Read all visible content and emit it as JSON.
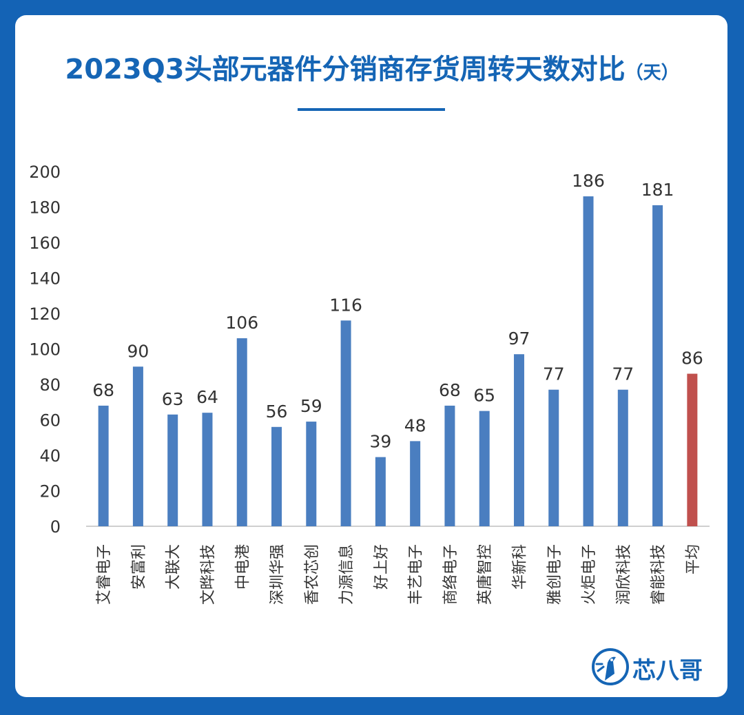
{
  "title": "2023Q3头部元器件分销商存货周转天数对比",
  "unit": "（天）",
  "logo_text": "芯八哥",
  "colors": {
    "background": "#1463b5",
    "title": "#1565b5",
    "bar": "#4a7ec0",
    "bar_highlight": "#c0504d",
    "text": "#333333"
  },
  "chart_data": {
    "type": "bar",
    "title": "2023Q3头部元器件分销商存货周转天数对比",
    "ylabel": "",
    "xlabel": "",
    "ylim": [
      0,
      200
    ],
    "yticks": [
      0,
      20,
      40,
      60,
      80,
      100,
      120,
      140,
      160,
      180,
      200
    ],
    "grid": false,
    "categories": [
      "艾睿电子",
      "安富利",
      "大联大",
      "文晔科技",
      "中电港",
      "深圳华强",
      "香农芯创",
      "力源信息",
      "好上好",
      "丰艺电子",
      "商络电子",
      "英唐智控",
      "华新科",
      "雅创电子",
      "火炬电子",
      "润欣科技",
      "睿能科技",
      "平均"
    ],
    "values": [
      68,
      90,
      63,
      64,
      106,
      56,
      59,
      116,
      39,
      48,
      68,
      65,
      97,
      77,
      186,
      77,
      181,
      86
    ],
    "highlight_index": 17
  }
}
